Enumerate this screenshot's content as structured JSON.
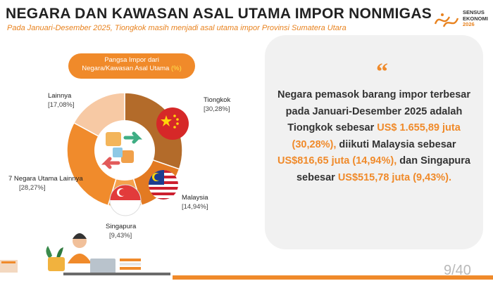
{
  "header": {
    "title": "NEGARA DAN KAWASAN ASAL UTAMA IMPOR NONMIGAS",
    "subtitle": "Pada Januari-Desember 2025, Tiongkok masih menjadi asal utama impor Provinsi Sumatera Utara"
  },
  "logo": {
    "line1": "SENSUS",
    "line2": "EKONOMI",
    "line3": "2026"
  },
  "legend_pill": {
    "line1": "Pangsa Impor dari",
    "line2": "Negara/Kawasan Asal Utama",
    "unit": "(%)"
  },
  "chart_data": {
    "type": "pie",
    "title": "Pangsa Impor dari Negara/Kawasan Asal Utama (%)",
    "slices": [
      {
        "label": "Tiongkok",
        "value": 30.28,
        "value_text": "[30,28%]",
        "color": "#b36b2a"
      },
      {
        "label": "Malaysia",
        "value": 14.94,
        "value_text": "[14,94%]",
        "color": "#e37a22"
      },
      {
        "label": "Singapura",
        "value": 9.43,
        "value_text": "[9,43%]",
        "color": "#f5a14d"
      },
      {
        "label": "7 Negara Utama Lainnya",
        "value": 28.27,
        "value_text": "[28,27%]",
        "color": "#f08b2c"
      },
      {
        "label": "Lainnya",
        "value": 17.08,
        "value_text": "[17,08%]",
        "color": "#f7c9a4"
      }
    ]
  },
  "panel": {
    "quote_mark": "“",
    "text": {
      "p1": "Negara pemasok barang impor terbesar pada Januari-Desember 2025 adalah Tiongkok sebesar ",
      "h1": "US$ 1.655,89 juta (30,28%),",
      "p2": " diikuti Malaysia sebesar ",
      "h2": "US$816,65 juta (14,94%),",
      "p3": " dan Singapura sebesar ",
      "h3": "US$515,78 juta (9,43%)."
    }
  },
  "footer": {
    "page": "9/40"
  },
  "colors": {
    "accent": "#f08a2a",
    "panel_bg": "#f1f1f1"
  }
}
